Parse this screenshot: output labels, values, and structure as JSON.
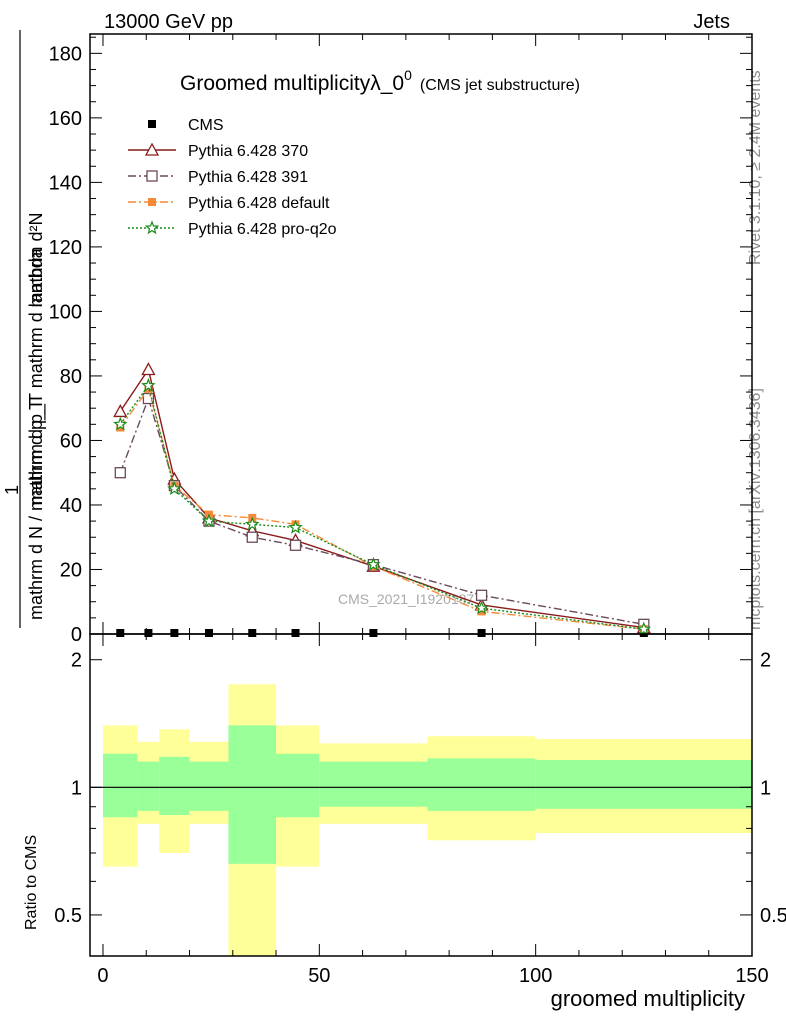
{
  "header": {
    "energy": "13000 GeV pp",
    "process": "Jets",
    "title_main": "Groomed multiplicityλ_0",
    "title_sup": "0",
    "title_sub": "(CMS jet substructure)"
  },
  "side_labels": {
    "rivet": "Rivet 3.1.10, ≥ 2.4M events",
    "mcplots": "mcplots.cern.ch [arXiv:1306.3436]"
  },
  "watermark": "CMS_2021_I1920187",
  "axes": {
    "xlabel": "groomed multiplicity",
    "ylabel_top_numer": "mathrm d²N",
    "ylabel_top_denom": "mathrm d p_T mathrm d lambda",
    "ylabel_one": "1",
    "ylabel_bottom": "mathrm d N / mathrm d p_T",
    "ratio_ylabel": "Ratio to CMS",
    "x_ticks": [
      "0",
      "50",
      "100",
      "150"
    ],
    "y_ticks": [
      "0",
      "20",
      "40",
      "60",
      "80",
      "100",
      "120",
      "140",
      "160",
      "180"
    ],
    "ratio_ticks": [
      "0.5",
      "1",
      "2"
    ]
  },
  "chart_data": {
    "type": "line",
    "xlabel": "groomed multiplicity",
    "xlim": [
      -3,
      150
    ],
    "ylim": [
      0,
      186
    ],
    "ratio_ylim": [
      0.4,
      2.3
    ],
    "ratio_scale": "log",
    "legend_placement": "top-left",
    "x": [
      4,
      10.5,
      16.5,
      24.5,
      34.5,
      44.5,
      62.5,
      87.5,
      125
    ],
    "bin_edges": [
      0,
      8,
      13,
      20,
      29,
      40,
      50,
      75,
      100,
      150
    ],
    "series": [
      {
        "name": "CMS",
        "color": "#000000",
        "marker": "square-filled",
        "style": "none",
        "values": [
          0.3,
          0.3,
          0.3,
          0.3,
          0.3,
          0.3,
          0.3,
          0.3,
          0.3
        ]
      },
      {
        "name": "Pythia 6.428 370",
        "color": "#8b1a1a",
        "marker": "triangle-open",
        "style": "solid",
        "values": [
          69,
          82,
          48,
          36,
          32,
          29,
          21,
          9,
          2
        ]
      },
      {
        "name": "Pythia 6.428 391",
        "color": "#6b4a5a",
        "marker": "square-open",
        "style": "dashdot",
        "values": [
          50,
          73,
          46,
          35,
          30,
          27.5,
          21.5,
          12,
          3
        ]
      },
      {
        "name": "Pythia 6.428 default",
        "color": "#f58a3a",
        "marker": "square-filled",
        "style": "dashdot",
        "values": [
          64,
          76,
          46,
          37,
          36,
          34,
          21,
          7,
          1.5
        ]
      },
      {
        "name": "Pythia 6.428 pro-q2o",
        "color": "#1a8c1a",
        "marker": "star",
        "style": "dotted",
        "values": [
          65,
          77,
          45,
          35,
          34,
          33,
          21.5,
          8,
          1.5
        ]
      }
    ],
    "ratio_bands": [
      {
        "x0": 0,
        "x1": 8,
        "y_in": [
          0.85,
          1.2
        ],
        "y_out": [
          0.65,
          1.4
        ]
      },
      {
        "x0": 8,
        "x1": 13,
        "y_in": [
          0.88,
          1.15
        ],
        "y_out": [
          0.82,
          1.28
        ]
      },
      {
        "x0": 13,
        "x1": 20,
        "y_in": [
          0.86,
          1.18
        ],
        "y_out": [
          0.7,
          1.37
        ]
      },
      {
        "x0": 20,
        "x1": 29,
        "y_in": [
          0.88,
          1.15
        ],
        "y_out": [
          0.82,
          1.28
        ]
      },
      {
        "x0": 29,
        "x1": 40,
        "y_in": [
          0.66,
          1.4
        ],
        "y_out": [
          0.4,
          1.75
        ]
      },
      {
        "x0": 40,
        "x1": 50,
        "y_in": [
          0.85,
          1.2
        ],
        "y_out": [
          0.65,
          1.4
        ]
      },
      {
        "x0": 50,
        "x1": 75,
        "y_in": [
          0.9,
          1.15
        ],
        "y_out": [
          0.82,
          1.27
        ]
      },
      {
        "x0": 75,
        "x1": 100,
        "y_in": [
          0.88,
          1.17
        ],
        "y_out": [
          0.75,
          1.32
        ]
      },
      {
        "x0": 100,
        "x1": 150,
        "y_in": [
          0.89,
          1.16
        ],
        "y_out": [
          0.78,
          1.3
        ]
      }
    ],
    "band_colors": {
      "inner": "#99ff99",
      "outer": "#ffff99"
    }
  }
}
